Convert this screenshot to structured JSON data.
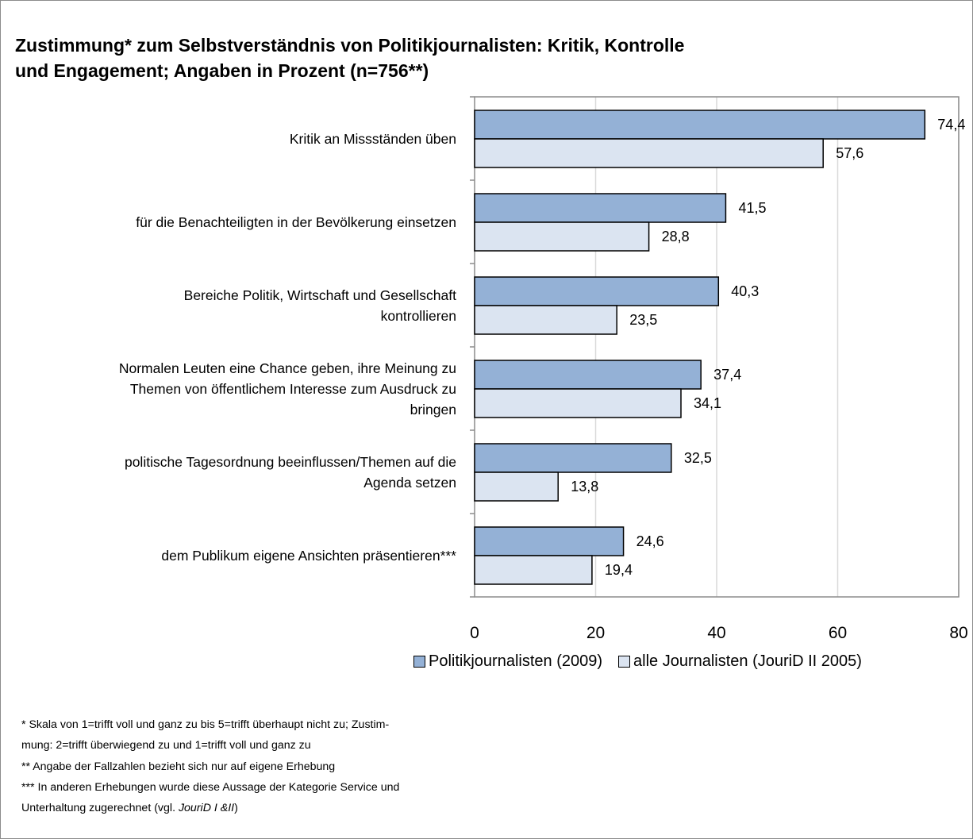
{
  "title": {
    "line1": "Zustimmung* zum Selbstverständnis von Politikjournalisten: Kritik, Kontrolle",
    "line2": "und Engagement; Angaben in Prozent (n=756**)"
  },
  "colors": {
    "series1": "#94b1d6",
    "series2": "#dbe4f1",
    "gridline": "#d9d9d9",
    "axis": "#8c8c8c"
  },
  "chart_data": {
    "type": "bar",
    "orientation": "horizontal",
    "categories": [
      "Kritik an Missständen üben",
      "für die Benachteiligten in der Bevölkerung einsetzen",
      "Bereiche Politik, Wirtschaft und Gesellschaft\nkontrollieren",
      "Normalen Leuten eine Chance geben, ihre Meinung zu\nThemen von öffentlichem Interesse zum Ausdruck zu\nbringen",
      "politische Tagesordnung beeinflussen/Themen auf die\nAgenda setzen",
      "dem Publikum eigene Ansichten präsentieren***"
    ],
    "series": [
      {
        "name": "Politikjournalisten (2009)",
        "values": [
          74.4,
          41.5,
          40.3,
          37.4,
          32.5,
          24.6
        ],
        "labels": [
          "74,4",
          "41,5",
          "40,3",
          "37,4",
          "32,5",
          "24,6"
        ]
      },
      {
        "name": "alle Journalisten (JouriD II 2005)",
        "values": [
          57.6,
          28.8,
          23.5,
          34.1,
          13.8,
          19.4
        ],
        "labels": [
          "57,6",
          "28,8",
          "23,5",
          "34,1",
          "13,8",
          "19,4"
        ]
      }
    ],
    "xlim": [
      0,
      80
    ],
    "xticks": [
      0,
      20,
      40,
      60,
      80
    ],
    "grid": true,
    "legend": "bottom"
  },
  "footnotes": {
    "line1": "* Skala von 1=trifft voll und ganz zu bis 5=trifft überhaupt nicht zu; Zustim-",
    "line2": "mung: 2=trifft überwiegend zu und 1=trifft voll und ganz zu",
    "line3": "** Angabe der Fallzahlen bezieht sich nur auf eigene Erhebung",
    "line4": "*** In anderen Erhebungen wurde diese Aussage der Kategorie Service und",
    "line5_prefix": "Unterhaltung zugerechnet (vgl. ",
    "line5_italic": "JouriD I &II",
    "line5_suffix": ")"
  }
}
